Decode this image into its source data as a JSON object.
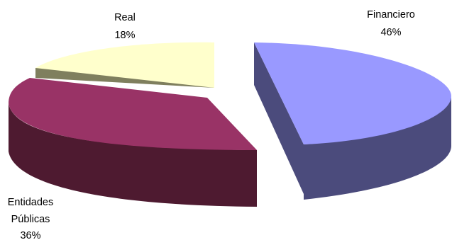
{
  "chart_data": {
    "type": "pie",
    "title": "",
    "style": "3d-exploded",
    "slices": [
      {
        "label_lines": [
          "Financiero"
        ],
        "value": 46,
        "value_label": "46%",
        "color": "#9999ff"
      },
      {
        "label_lines": [
          "Entidades",
          "Públicas"
        ],
        "value": 36,
        "value_label": "36%",
        "color": "#993366"
      },
      {
        "label_lines": [
          "Real"
        ],
        "value": 18,
        "value_label": "18%",
        "color": "#ffffcc"
      }
    ]
  }
}
